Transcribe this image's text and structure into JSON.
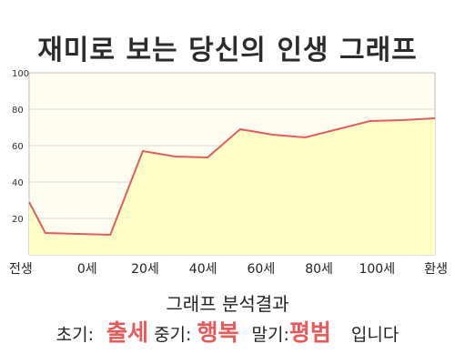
{
  "chart_data": {
    "type": "area",
    "title": "재미로 보는 당신의 인생 그래프",
    "x": [
      -5,
      0,
      10,
      20,
      30,
      40,
      50,
      60,
      70,
      80,
      90,
      100,
      110,
      120
    ],
    "x_tick_labels": [
      "전생",
      "0세",
      "20세",
      "40세",
      "60세",
      "80세",
      "100세",
      "환생"
    ],
    "y_ticks": [
      "20",
      "40",
      "60",
      "80",
      "100"
    ],
    "series": [
      {
        "values": [
          29,
          12,
          11.5,
          11,
          57,
          54,
          53.5,
          69,
          66,
          64.5,
          69,
          73.5,
          74,
          75
        ]
      }
    ],
    "ylim": [
      0,
      100
    ],
    "grid": "horizontal",
    "colors": {
      "line": "#e05d5d",
      "fill": "#ffffc8",
      "plot_bg": "#fffdf0"
    }
  },
  "result": {
    "title": "그래프 분석결과",
    "early_label": "초기:",
    "early_value": "출세",
    "middle_label": "중기:",
    "middle_value": "행복",
    "late_label": "말기:",
    "late_value": "평범",
    "suffix": "입니다"
  },
  "colors": {
    "highlight": "#e85a5a"
  }
}
